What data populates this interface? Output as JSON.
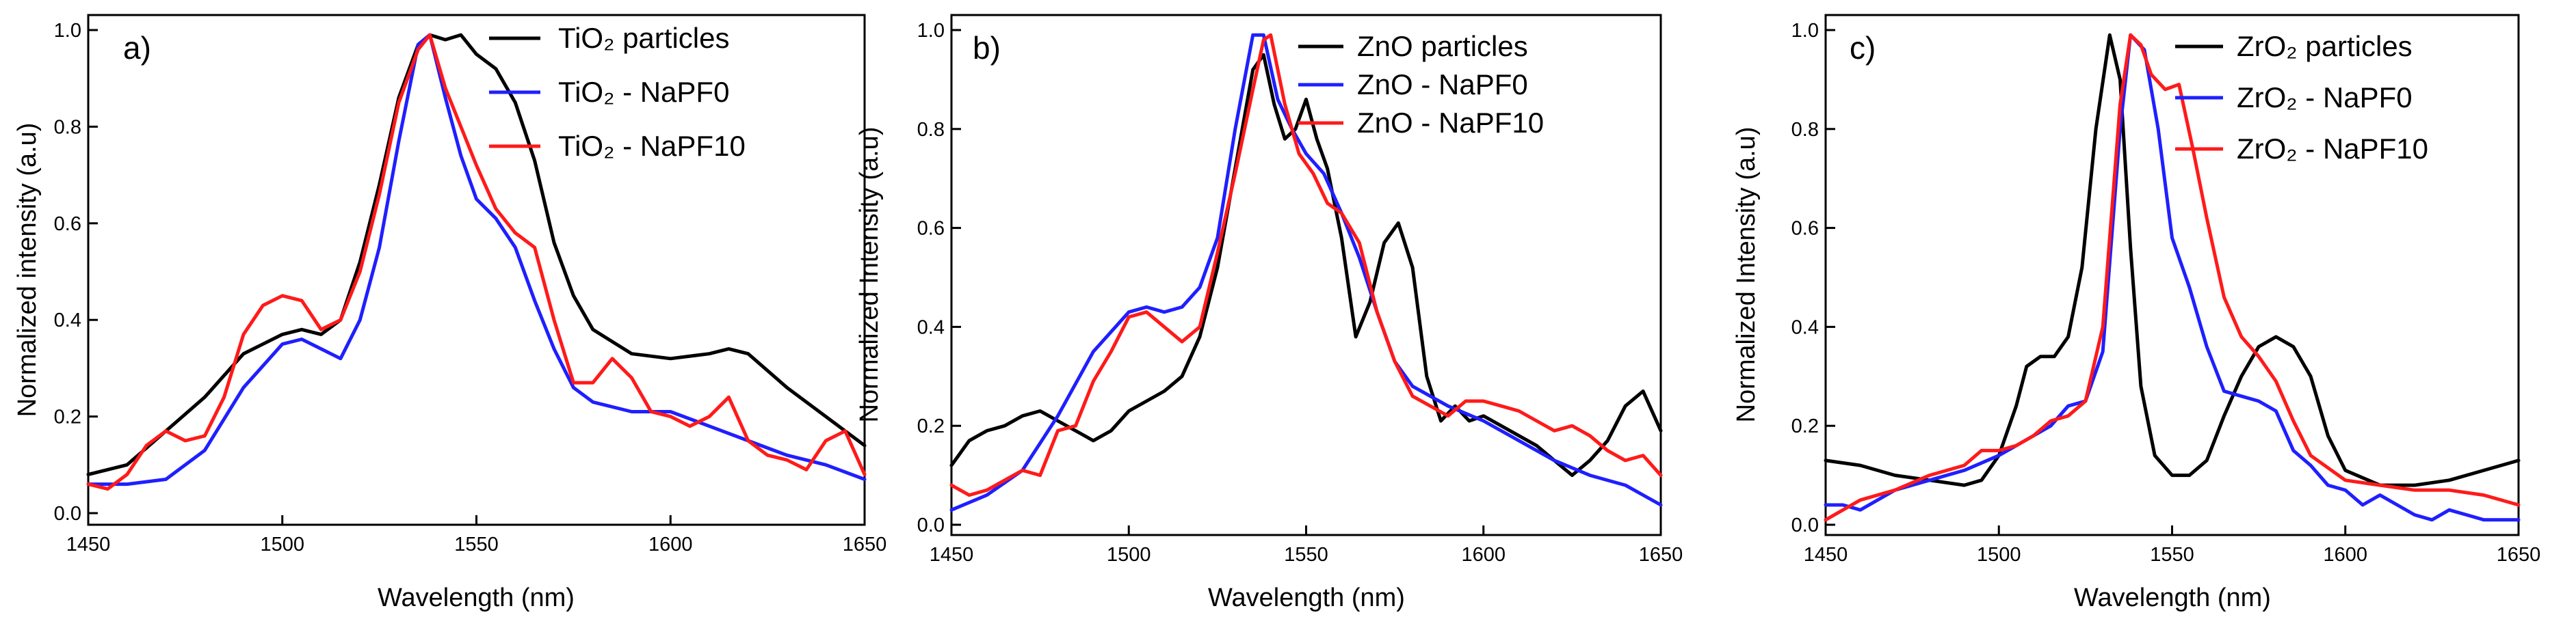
{
  "chart_data": [
    {
      "type": "line",
      "panel_label": "a)",
      "xlabel": "Wavelength (nm)",
      "ylabel": "Normalized intensity (a.u)",
      "xlim": [
        1450,
        1650
      ],
      "ylim": [
        0.0,
        1.0
      ],
      "xticks": [
        "1450",
        "1500",
        "1550",
        "1600",
        "1650"
      ],
      "yticks": [
        "0.0",
        "0.2",
        "0.4",
        "0.6",
        "0.8",
        "1.0"
      ],
      "legend_position": "top-right",
      "series": [
        {
          "name": "TiO₂ particles",
          "color": "#000000",
          "x": [
            1450,
            1460,
            1470,
            1480,
            1490,
            1500,
            1505,
            1510,
            1515,
            1520,
            1525,
            1530,
            1535,
            1538,
            1542,
            1546,
            1550,
            1555,
            1560,
            1565,
            1570,
            1575,
            1580,
            1590,
            1600,
            1610,
            1615,
            1620,
            1630,
            1640,
            1650
          ],
          "y": [
            0.08,
            0.1,
            0.17,
            0.24,
            0.33,
            0.37,
            0.38,
            0.37,
            0.4,
            0.52,
            0.68,
            0.86,
            0.97,
            0.99,
            0.98,
            0.99,
            0.95,
            0.92,
            0.85,
            0.73,
            0.56,
            0.45,
            0.38,
            0.33,
            0.32,
            0.33,
            0.34,
            0.33,
            0.26,
            0.2,
            0.14
          ]
        },
        {
          "name": "TiO₂ - NaPF0",
          "color": "#1f1fff",
          "x": [
            1450,
            1460,
            1470,
            1480,
            1490,
            1500,
            1505,
            1510,
            1515,
            1520,
            1525,
            1530,
            1535,
            1538,
            1542,
            1546,
            1550,
            1555,
            1560,
            1565,
            1570,
            1575,
            1580,
            1590,
            1600,
            1610,
            1620,
            1630,
            1640,
            1650
          ],
          "y": [
            0.06,
            0.06,
            0.07,
            0.13,
            0.26,
            0.35,
            0.36,
            0.34,
            0.32,
            0.4,
            0.55,
            0.77,
            0.97,
            0.99,
            0.86,
            0.74,
            0.65,
            0.61,
            0.55,
            0.44,
            0.34,
            0.26,
            0.23,
            0.21,
            0.21,
            0.18,
            0.15,
            0.12,
            0.1,
            0.07
          ]
        },
        {
          "name": "TiO₂ - NaPF10",
          "color": "#ff1a1a",
          "x": [
            1450,
            1455,
            1460,
            1465,
            1470,
            1475,
            1480,
            1485,
            1490,
            1495,
            1500,
            1505,
            1510,
            1515,
            1520,
            1525,
            1530,
            1535,
            1538,
            1542,
            1546,
            1550,
            1555,
            1560,
            1565,
            1570,
            1575,
            1580,
            1585,
            1590,
            1595,
            1600,
            1605,
            1610,
            1615,
            1620,
            1625,
            1630,
            1635,
            1640,
            1645,
            1650
          ],
          "y": [
            0.06,
            0.05,
            0.08,
            0.14,
            0.17,
            0.15,
            0.16,
            0.24,
            0.37,
            0.43,
            0.45,
            0.44,
            0.38,
            0.4,
            0.5,
            0.66,
            0.85,
            0.96,
            0.99,
            0.88,
            0.8,
            0.72,
            0.63,
            0.58,
            0.55,
            0.4,
            0.27,
            0.27,
            0.32,
            0.28,
            0.21,
            0.2,
            0.18,
            0.2,
            0.24,
            0.15,
            0.12,
            0.11,
            0.09,
            0.15,
            0.17,
            0.08
          ]
        }
      ]
    },
    {
      "type": "line",
      "panel_label": "b)",
      "xlabel": "Wavelength (nm)",
      "ylabel": "Normalized Intensity (a.u)",
      "xlim": [
        1450,
        1650
      ],
      "ylim": [
        0.0,
        1.0
      ],
      "xticks": [
        "1450",
        "1500",
        "1550",
        "1600",
        "1650"
      ],
      "yticks": [
        "0.0",
        "0.2",
        "0.4",
        "0.6",
        "0.8",
        "1.0"
      ],
      "legend_position": "top-right",
      "series": [
        {
          "name": "ZnO particles",
          "color": "#000000",
          "x": [
            1450,
            1455,
            1460,
            1465,
            1470,
            1475,
            1480,
            1485,
            1490,
            1495,
            1500,
            1505,
            1510,
            1515,
            1520,
            1525,
            1530,
            1535,
            1538,
            1541,
            1544,
            1547,
            1550,
            1553,
            1556,
            1560,
            1564,
            1568,
            1572,
            1576,
            1580,
            1584,
            1588,
            1592,
            1596,
            1600,
            1605,
            1610,
            1615,
            1620,
            1625,
            1630,
            1635,
            1640,
            1645,
            1650
          ],
          "y": [
            0.12,
            0.17,
            0.19,
            0.2,
            0.22,
            0.23,
            0.21,
            0.19,
            0.17,
            0.19,
            0.23,
            0.25,
            0.27,
            0.3,
            0.38,
            0.52,
            0.72,
            0.92,
            0.95,
            0.85,
            0.78,
            0.8,
            0.86,
            0.78,
            0.72,
            0.58,
            0.38,
            0.45,
            0.57,
            0.61,
            0.52,
            0.3,
            0.21,
            0.24,
            0.21,
            0.22,
            0.2,
            0.18,
            0.16,
            0.13,
            0.1,
            0.13,
            0.17,
            0.24,
            0.27,
            0.19
          ]
        },
        {
          "name": "ZnO - NaPF0",
          "color": "#1f1fff",
          "x": [
            1450,
            1460,
            1470,
            1480,
            1490,
            1500,
            1505,
            1510,
            1515,
            1520,
            1525,
            1530,
            1535,
            1538,
            1542,
            1546,
            1550,
            1555,
            1560,
            1565,
            1570,
            1575,
            1580,
            1590,
            1600,
            1610,
            1620,
            1630,
            1640,
            1650
          ],
          "y": [
            0.03,
            0.06,
            0.11,
            0.22,
            0.35,
            0.43,
            0.44,
            0.43,
            0.44,
            0.48,
            0.58,
            0.8,
            0.99,
            0.99,
            0.86,
            0.8,
            0.75,
            0.71,
            0.63,
            0.54,
            0.43,
            0.33,
            0.28,
            0.24,
            0.21,
            0.17,
            0.13,
            0.1,
            0.08,
            0.04
          ]
        },
        {
          "name": "ZnO - NaPF10",
          "color": "#ff1a1a",
          "x": [
            1450,
            1455,
            1460,
            1465,
            1470,
            1475,
            1480,
            1485,
            1490,
            1495,
            1500,
            1505,
            1510,
            1515,
            1520,
            1525,
            1530,
            1535,
            1538,
            1540,
            1544,
            1548,
            1552,
            1556,
            1560,
            1565,
            1570,
            1575,
            1580,
            1585,
            1590,
            1595,
            1600,
            1605,
            1610,
            1615,
            1620,
            1625,
            1630,
            1635,
            1640,
            1645,
            1650
          ],
          "y": [
            0.08,
            0.06,
            0.07,
            0.09,
            0.11,
            0.1,
            0.19,
            0.2,
            0.29,
            0.35,
            0.42,
            0.43,
            0.4,
            0.37,
            0.4,
            0.55,
            0.71,
            0.88,
            0.98,
            0.99,
            0.85,
            0.75,
            0.71,
            0.65,
            0.63,
            0.57,
            0.43,
            0.33,
            0.26,
            0.24,
            0.22,
            0.25,
            0.25,
            0.24,
            0.23,
            0.21,
            0.19,
            0.2,
            0.18,
            0.15,
            0.13,
            0.14,
            0.1
          ]
        }
      ]
    },
    {
      "type": "line",
      "panel_label": "c)",
      "xlabel": "Wavelength (nm)",
      "ylabel": "Normalized Intensity (a.u)",
      "xlim": [
        1450,
        1650
      ],
      "ylim": [
        0.0,
        1.0
      ],
      "xticks": [
        "1450",
        "1500",
        "1550",
        "1600",
        "1650"
      ],
      "yticks": [
        "0.0",
        "0.2",
        "0.4",
        "0.6",
        "0.8",
        "1.0"
      ],
      "legend_position": "top-right",
      "series": [
        {
          "name": "ZrO₂ particles",
          "color": "#000000",
          "x": [
            1450,
            1460,
            1470,
            1480,
            1490,
            1495,
            1500,
            1505,
            1508,
            1512,
            1516,
            1520,
            1524,
            1528,
            1532,
            1535,
            1538,
            1541,
            1545,
            1550,
            1555,
            1560,
            1565,
            1570,
            1575,
            1580,
            1585,
            1590,
            1595,
            1600,
            1610,
            1620,
            1630,
            1640,
            1650
          ],
          "y": [
            0.13,
            0.12,
            0.1,
            0.09,
            0.08,
            0.09,
            0.14,
            0.24,
            0.32,
            0.34,
            0.34,
            0.38,
            0.52,
            0.8,
            0.99,
            0.9,
            0.56,
            0.28,
            0.14,
            0.1,
            0.1,
            0.13,
            0.22,
            0.3,
            0.36,
            0.38,
            0.36,
            0.3,
            0.18,
            0.11,
            0.08,
            0.08,
            0.09,
            0.11,
            0.13
          ]
        },
        {
          "name": "ZrO₂ - NaPF0",
          "color": "#1f1fff",
          "x": [
            1450,
            1455,
            1460,
            1470,
            1480,
            1490,
            1500,
            1505,
            1510,
            1515,
            1520,
            1525,
            1530,
            1535,
            1538,
            1542,
            1546,
            1550,
            1555,
            1560,
            1565,
            1570,
            1575,
            1580,
            1585,
            1590,
            1595,
            1600,
            1605,
            1610,
            1615,
            1620,
            1625,
            1630,
            1635,
            1640,
            1645,
            1650
          ],
          "y": [
            0.04,
            0.04,
            0.03,
            0.07,
            0.09,
            0.11,
            0.14,
            0.16,
            0.18,
            0.2,
            0.24,
            0.25,
            0.35,
            0.8,
            0.99,
            0.96,
            0.8,
            0.58,
            0.48,
            0.36,
            0.27,
            0.26,
            0.25,
            0.23,
            0.15,
            0.12,
            0.08,
            0.07,
            0.04,
            0.06,
            0.04,
            0.02,
            0.01,
            0.03,
            0.02,
            0.01,
            0.01,
            0.01
          ]
        },
        {
          "name": "ZrO₂ - NaPF10",
          "color": "#ff1a1a",
          "x": [
            1450,
            1460,
            1470,
            1480,
            1490,
            1495,
            1500,
            1505,
            1510,
            1515,
            1520,
            1525,
            1530,
            1535,
            1538,
            1541,
            1544,
            1548,
            1552,
            1556,
            1560,
            1565,
            1570,
            1575,
            1580,
            1585,
            1590,
            1600,
            1610,
            1620,
            1630,
            1640,
            1650
          ],
          "y": [
            0.01,
            0.05,
            0.07,
            0.1,
            0.12,
            0.15,
            0.15,
            0.16,
            0.18,
            0.21,
            0.22,
            0.25,
            0.4,
            0.85,
            0.99,
            0.97,
            0.91,
            0.88,
            0.89,
            0.76,
            0.62,
            0.46,
            0.38,
            0.34,
            0.29,
            0.21,
            0.14,
            0.09,
            0.08,
            0.07,
            0.07,
            0.06,
            0.04
          ]
        }
      ]
    }
  ]
}
